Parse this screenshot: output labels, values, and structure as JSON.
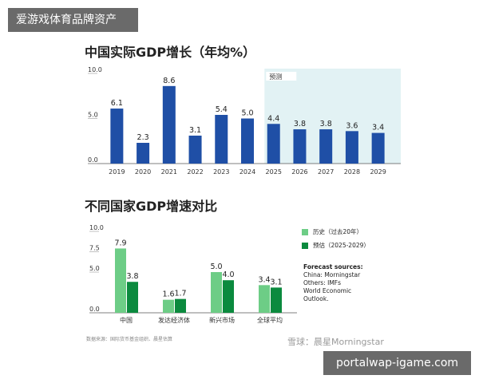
{
  "watermark_top": "爱游戏体育品牌资产",
  "watermark_bottom": "portalwap-igame.com",
  "credit": "雪球：晨星Morningstar",
  "footnote": "数据来源：国际货币基金组织、晨星估算",
  "sources": {
    "title": "Forecast sources:",
    "lines": [
      "China: Morningstar",
      "Others: IMFs",
      "World Economic",
      "Outlook."
    ]
  },
  "colors": {
    "bar_blue": "#1f4fa6",
    "forecast_bg": "#e2f2f4",
    "hist_green": "#6dcd86",
    "fcst_green": "#0b8a3e"
  },
  "chart_data": [
    {
      "type": "bar",
      "title": "中国实际GDP增长（年均%）",
      "categories": [
        "2019",
        "2020",
        "2021",
        "2022",
        "2023",
        "2024",
        "2025",
        "2026",
        "2027",
        "2028",
        "2029"
      ],
      "values": [
        6.1,
        2.3,
        8.6,
        3.1,
        5.4,
        5.0,
        4.4,
        3.8,
        3.8,
        3.6,
        3.4
      ],
      "value_labels": [
        "6.1",
        "2.3",
        "8.6",
        "3.1",
        "5.4",
        "5.0",
        "4.4",
        "3.8",
        "3.8",
        "3.6",
        "3.4"
      ],
      "yticks": [
        "10.0",
        "5.0",
        "0.0"
      ],
      "ylim": [
        0,
        10
      ],
      "forecast_label": "预测",
      "forecast_start": "2025"
    },
    {
      "type": "bar",
      "title": "不同国家GDP增速对比",
      "categories": [
        "中国",
        "发达经济体",
        "新兴市场",
        "全球平均"
      ],
      "series": [
        {
          "name": "历史（过去20年）",
          "values": [
            7.9,
            1.6,
            5.0,
            3.4
          ],
          "labels": [
            "7.9",
            "1.6",
            "5.0",
            "3.4"
          ]
        },
        {
          "name": "预估（2025-2029）",
          "values": [
            3.8,
            1.7,
            4.0,
            3.1
          ],
          "labels": [
            "3.8",
            "1.7",
            "4.0",
            "3.1"
          ]
        }
      ],
      "yticks": [
        "10.0",
        "7.5",
        "5.0",
        "0.0"
      ],
      "ylim": [
        0,
        10
      ],
      "legend_position": "right"
    }
  ]
}
